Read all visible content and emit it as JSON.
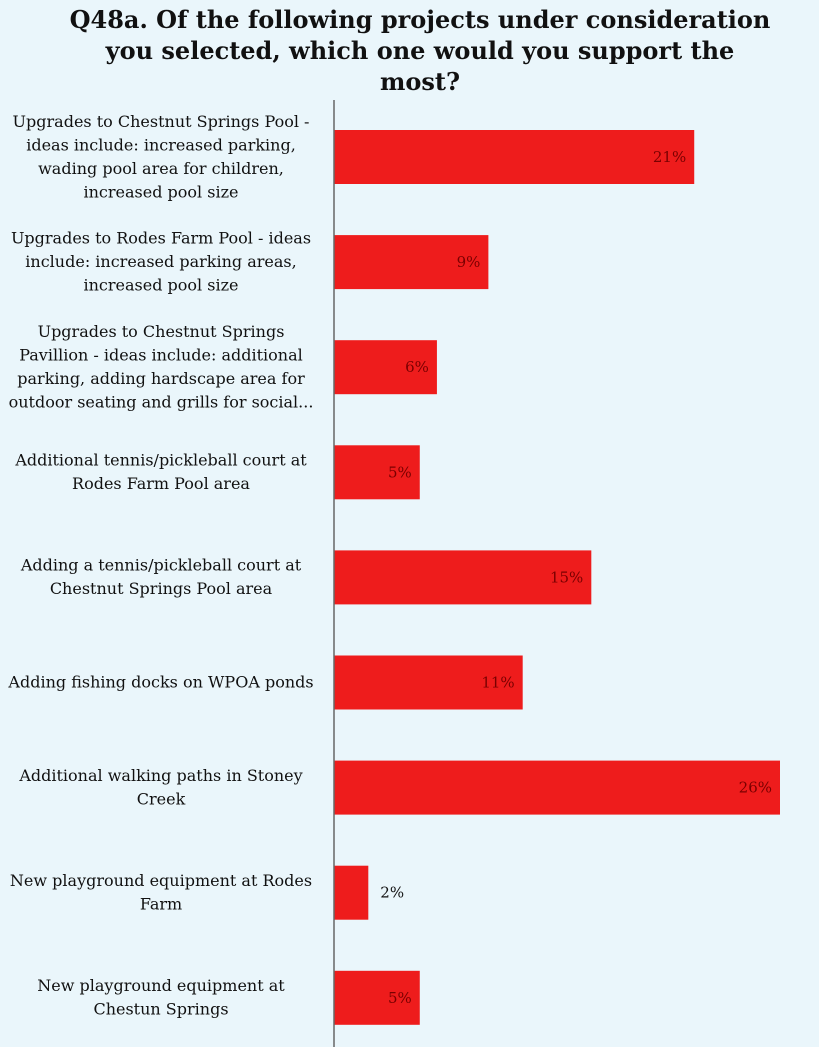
{
  "chart_data": {
    "type": "bar",
    "orientation": "horizontal",
    "title": "Q48a. Of the following projects under consideration\nyou selected, which one would you support the\nmost?",
    "categories": [
      [
        "Upgrades to Chestnut Springs Pool -",
        "ideas include: increased parking,",
        "wading pool area for children,",
        "increased pool size"
      ],
      [
        "Upgrades to Rodes Farm Pool - ideas",
        "include: increased parking areas,",
        "increased pool size"
      ],
      [
        "Upgrades to Chestnut Springs",
        "Pavillion - ideas include: additional",
        "parking, adding hardscape area for",
        "outdoor seating and grills for social..."
      ],
      [
        "Additional tennis/pickleball court at",
        "Rodes Farm Pool area"
      ],
      [
        "Adding a tennis/pickleball court at",
        "Chestnut Springs Pool area"
      ],
      [
        "Adding fishing docks on WPOA ponds"
      ],
      [
        "Additional walking paths in Stoney",
        "Creek"
      ],
      [
        "New playground equipment at Rodes",
        "Farm"
      ],
      [
        "New playground equipment at",
        "Chestun Springs"
      ]
    ],
    "values": [
      21,
      9,
      6,
      5,
      15,
      11,
      26,
      2,
      5
    ],
    "data_labels": [
      "21%",
      "9%",
      "6%",
      "5%",
      "15%",
      "11%",
      "26%",
      "2%",
      "5%"
    ],
    "value_unit": "%",
    "xlim": [
      0,
      26
    ],
    "bar_color": "#ee1c1c",
    "inside_label_color": "#7a0000",
    "outside_label_color": "#111111",
    "background_color": "#eaf6fb",
    "grid": false,
    "legend": "none"
  }
}
